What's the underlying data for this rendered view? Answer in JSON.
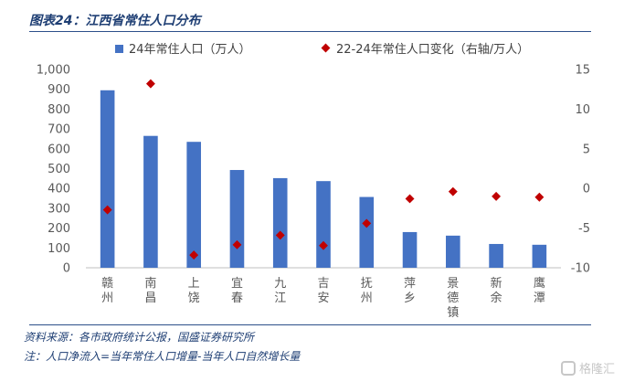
{
  "header": {
    "title": "图表24：江西省常住人口分布"
  },
  "footer": {
    "source": "资料来源：各市政府统计公报，国盛证券研究所",
    "note": "注：人口净流入=当年常住人口增量-当年人口自然增长量"
  },
  "watermark": {
    "text": "格隆汇"
  },
  "colors": {
    "bar": "#4472c4",
    "marker": "#c00000",
    "axis_text": "#595959"
  },
  "chart_data": {
    "type": "bar",
    "categories": [
      "赣州",
      "南昌",
      "上饶",
      "宜春",
      "九江",
      "吉安",
      "抚州",
      "萍乡",
      "景德镇",
      "新余",
      "鹰潭"
    ],
    "series": [
      {
        "name": "24年常住人口（万人）",
        "type": "bar",
        "axis": "left",
        "values": [
          895,
          665,
          635,
          493,
          452,
          437,
          357,
          180,
          162,
          120,
          116
        ]
      },
      {
        "name": "22-24年常住人口变化（右轴/万人）",
        "type": "scatter",
        "axis": "right",
        "values": [
          -2.7,
          13.2,
          -8.4,
          -7.1,
          -5.9,
          -7.2,
          -4.4,
          -1.3,
          -0.4,
          -1.0,
          -1.1
        ]
      }
    ],
    "ylim": [
      0,
      1000
    ],
    "y_ticks": [
      "0",
      "100",
      "200",
      "300",
      "400",
      "500",
      "600",
      "700",
      "800",
      "900",
      "1,000"
    ],
    "y2lim": [
      -10,
      15
    ],
    "y2_ticks": [
      "-10",
      "-5",
      "0",
      "5",
      "10",
      "15"
    ],
    "legend_position": "top",
    "grid": false
  }
}
